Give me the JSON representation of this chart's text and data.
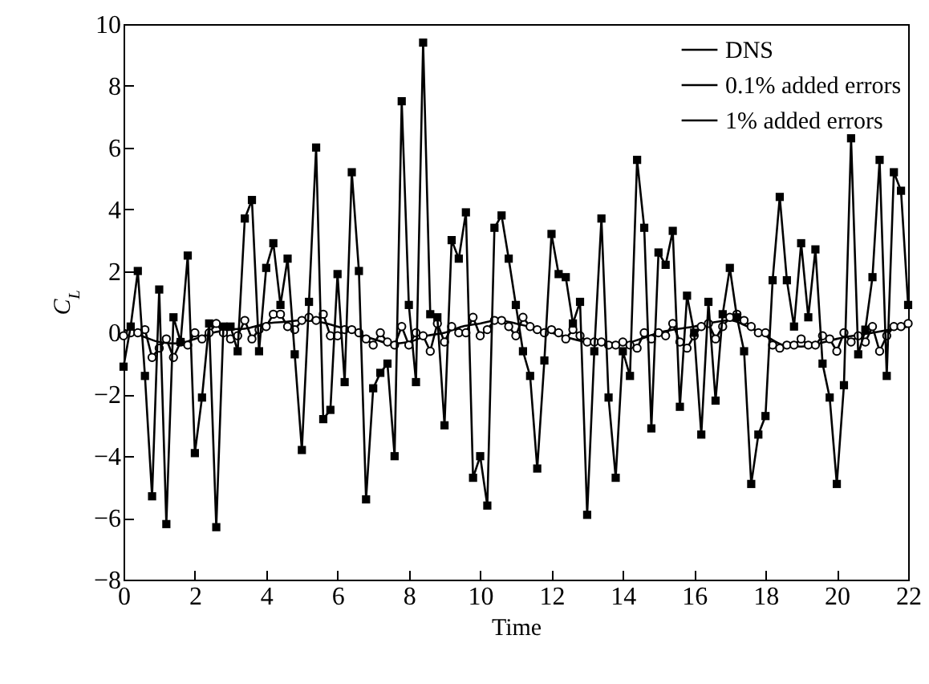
{
  "chart_data": {
    "type": "line",
    "xlabel": "Time",
    "ylabel": "C$_{L}$",
    "xlim": [
      0,
      22
    ],
    "xticks": [
      0,
      2,
      4,
      6,
      8,
      10,
      12,
      14,
      16,
      18,
      20,
      22
    ],
    "ylim": [
      -8,
      10
    ],
    "yticks": [
      -8,
      -6,
      -4,
      -2,
      0,
      2,
      4,
      6,
      8,
      10
    ],
    "legend": "top right",
    "x": [
      0,
      0.2,
      0.4,
      0.6,
      0.8,
      1,
      1.2,
      1.4,
      1.6,
      1.8,
      2,
      2.2,
      2.4,
      2.6,
      2.8,
      3,
      3.2,
      3.4,
      3.6,
      3.8,
      4,
      4.2,
      4.4,
      4.6,
      4.8,
      5,
      5.2,
      5.4,
      5.6,
      5.8,
      6,
      6.2,
      6.4,
      6.6,
      6.8,
      7,
      7.2,
      7.4,
      7.6,
      7.8,
      8,
      8.2,
      8.4,
      8.6,
      8.8,
      9,
      9.2,
      9.4,
      9.6,
      9.8,
      10,
      10.2,
      10.4,
      10.6,
      10.8,
      11,
      11.2,
      11.4,
      11.6,
      11.8,
      12,
      12.2,
      12.4,
      12.6,
      12.8,
      13,
      13.2,
      13.4,
      13.6,
      13.8,
      14,
      14.2,
      14.4,
      14.6,
      14.8,
      15,
      15.2,
      15.4,
      15.6,
      15.8,
      16,
      16.2,
      16.4,
      16.6,
      16.8,
      17,
      17.2,
      17.4,
      17.6,
      17.8,
      18,
      18.2,
      18.4,
      18.6,
      18.8,
      19,
      19.2,
      19.4,
      19.6,
      19.8,
      20,
      20.2,
      20.4,
      20.6,
      20.8,
      21,
      21.2,
      21.4,
      21.6,
      21.8,
      22
    ],
    "series": [
      {
        "name": "DNS",
        "color": "#000000",
        "marker": "none",
        "x": [
          0,
          0.5,
          1,
          1.5,
          2,
          2.5,
          3,
          3.5,
          4,
          4.5,
          5,
          5.5,
          6,
          7,
          7.5,
          8,
          8.5,
          9,
          9.5,
          10,
          10.5,
          11,
          12,
          13,
          14,
          14.5,
          15,
          16,
          17,
          17.5,
          18,
          18.5,
          19,
          19.5,
          20,
          21,
          22
        ],
        "values": [
          0.1,
          -0.1,
          -0.3,
          -0.35,
          -0.2,
          0.0,
          0.1,
          0.15,
          0.3,
          0.35,
          0.4,
          0.35,
          0.2,
          -0.2,
          -0.35,
          -0.3,
          -0.1,
          0.0,
          0.2,
          0.3,
          0.4,
          0.3,
          0.0,
          -0.3,
          -0.35,
          -0.2,
          0.0,
          0.2,
          0.4,
          0.2,
          -0.1,
          -0.4,
          -0.45,
          -0.35,
          -0.2,
          0.0,
          0.2
        ]
      },
      {
        "name": "0.1% added errors",
        "color": "#000000",
        "marker": "circle",
        "values": [
          -0.1,
          0.0,
          0.0,
          0.1,
          -0.8,
          -0.5,
          -0.2,
          -0.8,
          -0.3,
          -0.4,
          0.0,
          -0.2,
          0.0,
          0.3,
          0.0,
          -0.2,
          -0.1,
          0.4,
          -0.2,
          0.1,
          0.2,
          0.6,
          0.6,
          0.2,
          0.1,
          0.4,
          0.5,
          0.4,
          0.6,
          -0.1,
          -0.1,
          0.1,
          0.1,
          0.0,
          -0.2,
          -0.4,
          0.0,
          -0.3,
          -0.4,
          0.2,
          -0.4,
          0.0,
          -0.1,
          -0.6,
          0.3,
          -0.3,
          0.2,
          0.0,
          0.0,
          0.5,
          -0.1,
          0.1,
          0.4,
          0.4,
          0.2,
          -0.1,
          0.5,
          0.2,
          0.1,
          0.0,
          0.1,
          0.0,
          -0.2,
          0.1,
          -0.1,
          -0.3,
          -0.3,
          -0.3,
          -0.4,
          -0.4,
          -0.3,
          -0.4,
          -0.5,
          0.0,
          -0.2,
          0.0,
          -0.1,
          0.3,
          -0.3,
          -0.5,
          -0.1,
          0.2,
          0.3,
          -0.2,
          0.2,
          0.5,
          0.6,
          0.4,
          0.2,
          0.0,
          0.0,
          -0.4,
          -0.5,
          -0.4,
          -0.4,
          -0.2,
          -0.4,
          -0.4,
          -0.1,
          -0.2,
          -0.6,
          0.0,
          -0.3,
          -0.1,
          -0.3,
          0.2,
          -0.6,
          -0.1,
          0.2,
          0.2,
          0.3
        ]
      },
      {
        "name": "1% added errors",
        "color": "#000000",
        "marker": "square",
        "values": [
          -1.1,
          0.2,
          2.0,
          -1.4,
          -5.3,
          1.4,
          -6.2,
          0.5,
          -0.3,
          2.5,
          -3.9,
          -2.1,
          0.3,
          -6.3,
          0.2,
          0.2,
          -0.6,
          3.7,
          4.3,
          -0.6,
          2.1,
          2.9,
          0.9,
          2.4,
          -0.7,
          -3.8,
          1.0,
          6.0,
          -2.8,
          -2.5,
          1.9,
          -1.6,
          5.2,
          2.0,
          -5.4,
          -1.8,
          -1.3,
          -1.0,
          -4.0,
          7.5,
          0.9,
          -1.6,
          9.4,
          0.6,
          0.5,
          -3.0,
          3.0,
          2.4,
          3.9,
          -4.7,
          -4.0,
          -5.6,
          3.4,
          3.8,
          2.4,
          0.9,
          -0.6,
          -1.4,
          -4.4,
          -0.9,
          3.2,
          1.9,
          1.8,
          0.3,
          1.0,
          -5.9,
          -0.6,
          3.7,
          -2.1,
          -4.7,
          -0.6,
          -1.4,
          5.6,
          3.4,
          -3.1,
          2.6,
          2.2,
          3.3,
          -2.4,
          1.2,
          0.0,
          -3.3,
          1.0,
          -2.2,
          0.6,
          2.1,
          0.5,
          -0.6,
          -4.9,
          -3.3,
          -2.7,
          1.7,
          4.4,
          1.7,
          0.2,
          2.9,
          0.5,
          2.7,
          -1.0,
          -2.1,
          -4.9,
          -1.7,
          6.3,
          -0.7,
          0.1,
          1.8,
          5.6,
          -1.4,
          5.2,
          4.6,
          0.9
        ]
      }
    ]
  }
}
